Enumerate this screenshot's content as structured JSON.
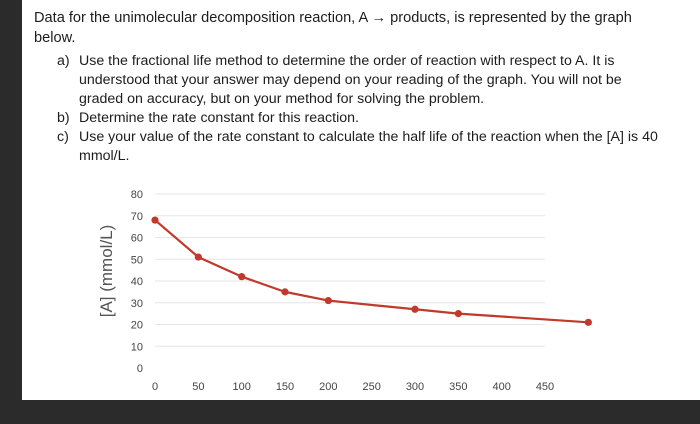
{
  "problem": {
    "intro": "Data for the unimolecular decomposition reaction, A → products, is represented by the graph below.",
    "parts": [
      {
        "label": "a)",
        "text": "Use the fractional life method to determine the order of reaction with respect to A. It is understood that your answer may depend on your reading of the graph. You will not be graded on accuracy, but on your method for solving the problem."
      },
      {
        "label": "b)",
        "text": "Determine the rate constant for this reaction."
      },
      {
        "label": "c)",
        "text": "Use your value of the rate constant to calculate the half life of the reaction when the [A] is 40 mmol/L."
      }
    ]
  },
  "chart_data": {
    "type": "line",
    "ylabel": "[A] (mmol/L)",
    "xlabel": "",
    "x_ticks": [
      "0",
      "50",
      "100",
      "150",
      "200",
      "250",
      "300",
      "350",
      "400",
      "450"
    ],
    "y_ticks": [
      "0",
      "10",
      "20",
      "30",
      "40",
      "50",
      "60",
      "70",
      "80"
    ],
    "xlim": [
      0,
      450
    ],
    "ylim": [
      0,
      80
    ],
    "grid": true,
    "series": [
      {
        "color": "#c0392b",
        "x": [
          0,
          50,
          100,
          150,
          200,
          300,
          350,
          500
        ],
        "y": [
          68,
          51,
          42,
          35,
          31,
          27,
          25,
          21
        ]
      }
    ]
  }
}
